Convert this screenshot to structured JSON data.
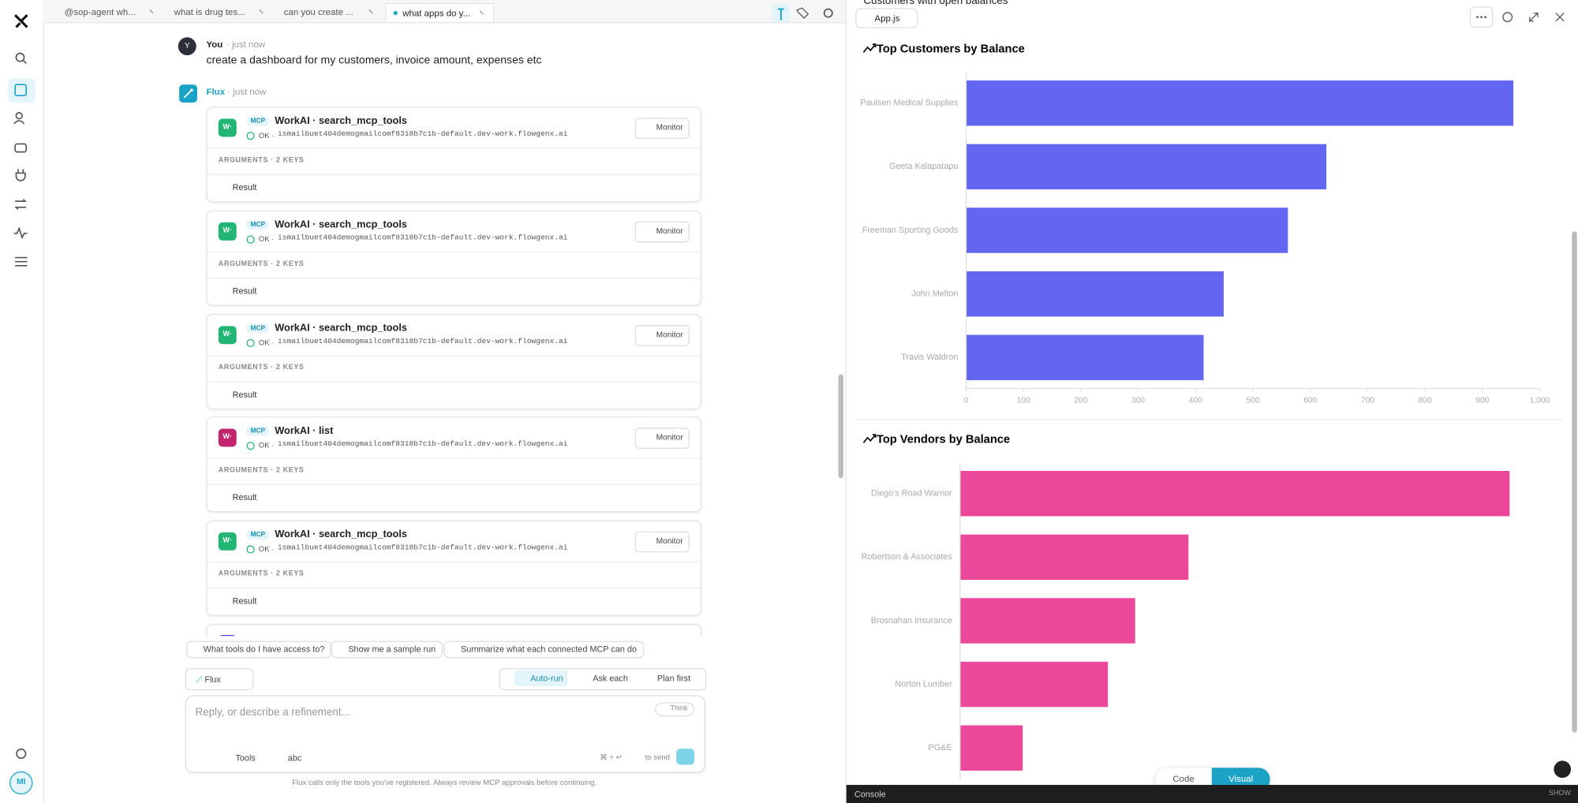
{
  "sidebar": {
    "avatar": "MI"
  },
  "tabs": [
    "@sop-agent wh...",
    "what is drug tes...",
    "can you create ...",
    "what apps do y..."
  ],
  "messages": {
    "user": {
      "avatar": "Y",
      "name": "You",
      "time": "· just now",
      "text": "create a dashboard for my customers, invoice amount, expenses etc"
    },
    "agent": {
      "name": "Flux",
      "time": "· just now"
    }
  },
  "tool_calls": [
    {
      "icon": "W·",
      "icon_color": "#22b573",
      "badge": "MCP",
      "title": "WorkAI · search_mcp_tools",
      "status": "OK ·",
      "host": "ismailbuet404demogmailcomf8318b7c1b-default.dev-work.flowgenx.ai",
      "button": "Monitor",
      "args": "ARGUMENTS · 2 KEYS",
      "result": "Result"
    },
    {
      "icon": "W·",
      "icon_color": "#22b573",
      "badge": "MCP",
      "title": "WorkAI · search_mcp_tools",
      "status": "OK ·",
      "host": "ismailbuet404demogmailcomf8318b7c1b-default.dev-work.flowgenx.ai",
      "button": "Monitor",
      "args": "ARGUMENTS · 2 KEYS",
      "result": "Result"
    },
    {
      "icon": "W·",
      "icon_color": "#22b573",
      "badge": "MCP",
      "title": "WorkAI · search_mcp_tools",
      "status": "OK ·",
      "host": "ismailbuet404demogmailcomf8318b7c1b-default.dev-work.flowgenx.ai",
      "button": "Monitor",
      "args": "ARGUMENTS · 2 KEYS",
      "result": "Result"
    },
    {
      "icon": "W·",
      "icon_color": "#c2246e",
      "badge": "MCP",
      "title": "WorkAI · list",
      "status": "OK ·",
      "host": "ismailbuet404demogmailcomf8318b7c1b-default.dev-work.flowgenx.ai",
      "button": "Monitor",
      "args": "ARGUMENTS · 2 KEYS",
      "result": "Result"
    },
    {
      "icon": "W·",
      "icon_color": "#22b573",
      "badge": "MCP",
      "title": "WorkAI · search_mcp_tools",
      "status": "OK ·",
      "host": "ismailbuet404demogmailcomf8318b7c1b-default.dev-work.flowgenx.ai",
      "button": "Monitor",
      "args": "ARGUMENTS · 2 KEYS",
      "result": "Result"
    }
  ],
  "suggestions": [
    "What tools do I have access to?",
    "Show me a sample run",
    "Summarize what each connected MCP can do"
  ],
  "composer": {
    "agent": "Flux",
    "modes": [
      "Auto-run",
      "Ask each",
      "Plan first"
    ],
    "placeholder": "Reply, or describe a refinement...",
    "think": "Think",
    "tools": "Tools",
    "model": "abc",
    "shortcut": "⌘ + ↵",
    "send_hint": "to send",
    "footer": "Flux calls only the tools you've registered. Always review MCP approvals before continuing."
  },
  "preview": {
    "file": "App.js",
    "heading": "Customers with open balances",
    "views": [
      "Code",
      "Visual"
    ],
    "console": "Console",
    "show": "SHOW"
  },
  "chart_data": [
    {
      "type": "hbar",
      "title": "Top Customers by Balance",
      "categories": [
        "Paulsen Medical Supplies",
        "Geeta Kalapatapu",
        "Freeman Sporting Goods",
        "John Melton",
        "Travis Waldron"
      ],
      "values": [
        954,
        628,
        561,
        449,
        414
      ],
      "color": "#6366f1",
      "xlim": [
        0,
        1000
      ],
      "xticks": [
        0,
        100,
        200,
        300,
        400,
        500,
        600,
        700,
        800,
        900,
        {
          "value": 1000,
          "label": "1,000"
        }
      ]
    },
    {
      "type": "hbar",
      "title": "Top Vendors by Balance",
      "categories": [
        "Diego's Road Warrior",
        "Robertson & Associates",
        "Brosnahan Insurance",
        "Norton Lumber",
        "PG&E"
      ],
      "values": [
        948,
        394,
        302,
        255,
        108
      ],
      "color": "#ec4899",
      "xlim": [
        0,
        1000
      ]
    }
  ]
}
